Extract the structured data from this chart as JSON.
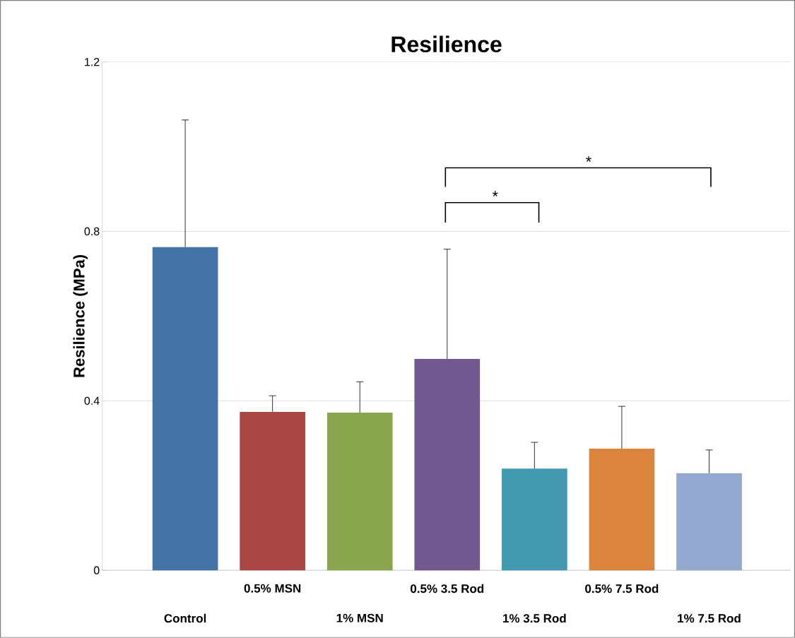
{
  "chart_data": {
    "type": "bar",
    "title": "Resilience",
    "ylabel": "Resilience (MPa)",
    "categories": [
      "Control",
      "0.5% MSN",
      "1% MSN",
      "0.5% 3.5 Rod",
      "1% 3.5 Rod",
      "0.5% 7.5 Rod",
      "1% 7.5 Rod"
    ],
    "values": [
      0.763,
      0.374,
      0.372,
      0.499,
      0.24,
      0.287,
      0.229
    ],
    "errors": [
      [
        0.763,
        1.063
      ],
      [
        0.374,
        0.412
      ],
      [
        0.372,
        0.445
      ],
      [
        0.499,
        0.758
      ],
      [
        0.24,
        0.302
      ],
      [
        0.287,
        0.387
      ],
      [
        0.229,
        0.284
      ]
    ],
    "colors": [
      "#4572a7",
      "#aa4643",
      "#89a54e",
      "#71588f",
      "#4198af",
      "#db843d",
      "#93a9cf"
    ],
    "ylim": [
      0,
      1.2
    ],
    "yticks": [
      0,
      0.4,
      0.8,
      1.2
    ],
    "grid": "y",
    "annotations": [
      "*",
      "*"
    ]
  }
}
